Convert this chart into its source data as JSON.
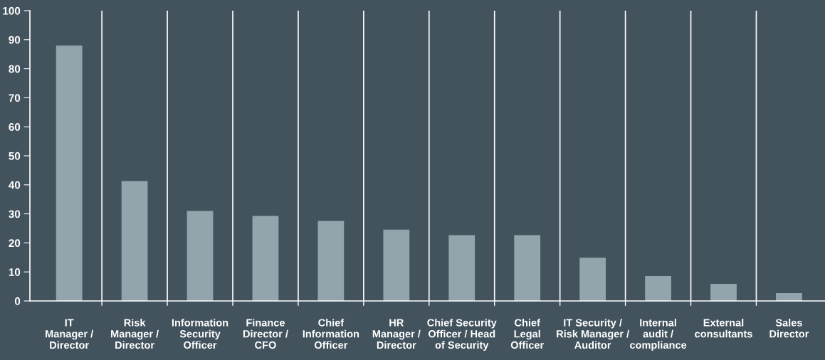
{
  "chart_data": {
    "type": "bar",
    "categories": [
      "IT\nManager /\nDirector",
      "Risk\nManager /\nDirector",
      "Information\nSecurity\nOfficer",
      "Finance\nDirector /\nCFO",
      "Chief\nInformation\nOfficer",
      "HR\nManager /\nDirector",
      "Chief Security\nOfficer / Head\nof Security",
      "Chief\nLegal\nOfficer",
      "IT Security /\nRisk Manager /\nAuditor",
      "Internal\naudit /\ncompliance",
      "External\nconsultants",
      "Sales\nDirector"
    ],
    "values": [
      88.0,
      41.3,
      31.0,
      29.3,
      27.6,
      24.6,
      22.7,
      22.7,
      14.9,
      8.6,
      5.9,
      2.7
    ],
    "color": "#94a4ac",
    "ylim": [
      0,
      100
    ],
    "yticks": [
      0,
      10,
      20,
      30,
      40,
      50,
      60,
      70,
      80,
      90,
      100
    ],
    "grid": "x",
    "legend": false
  }
}
